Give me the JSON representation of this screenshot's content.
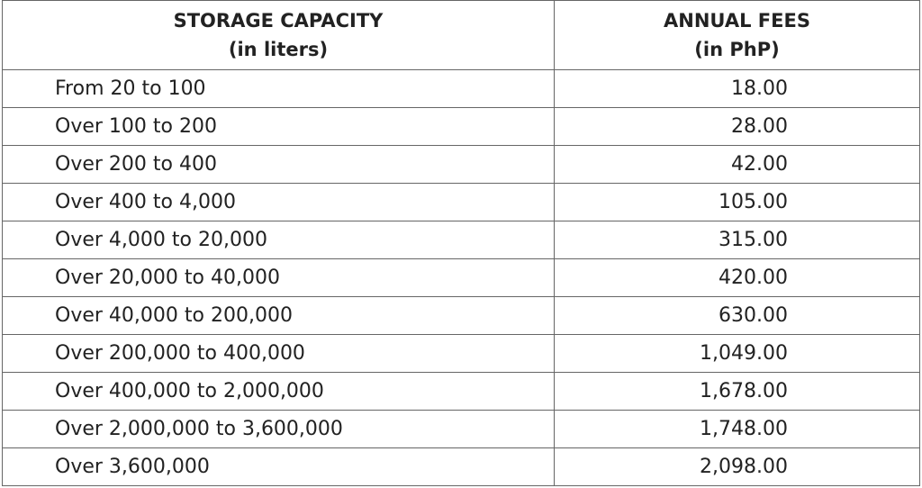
{
  "table": {
    "header": [
      [
        "STORAGE CAPACITY",
        "(in liters)"
      ],
      [
        "ANNUAL FEES",
        "(in PhP)"
      ]
    ],
    "rows": [
      [
        "From 20 to 100",
        "18.00"
      ],
      [
        "Over 100 to 200",
        "28.00"
      ],
      [
        "Over 200 to 400",
        "42.00"
      ],
      [
        "Over 400 to 4,000",
        "105.00"
      ],
      [
        "Over 4,000 to 20,000",
        "315.00"
      ],
      [
        "Over 20,000 to 40,000",
        "420.00"
      ],
      [
        "Over 40,000 to 200,000",
        "630.00"
      ],
      [
        "Over 200,000 to 400,000",
        "1,049.00"
      ],
      [
        "Over 400,000 to 2,000,000",
        "1,678.00"
      ],
      [
        "Over 2,000,000 to 3,600,000",
        "1,748.00"
      ],
      [
        "Over 3,600,000",
        "2,098.00"
      ]
    ]
  }
}
